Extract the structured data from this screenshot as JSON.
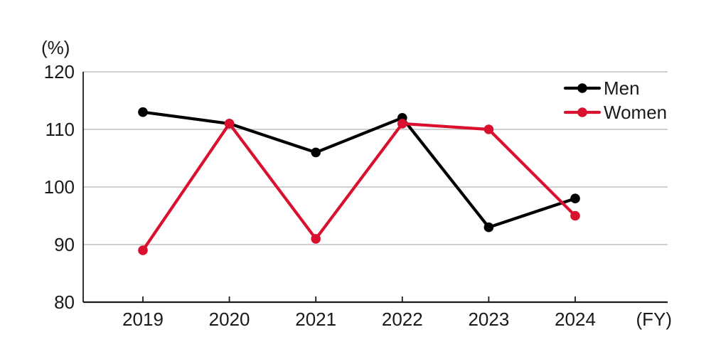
{
  "page": {
    "background": "#ffffff"
  },
  "chart_data": {
    "type": "line",
    "title": "",
    "categories": [
      "2019",
      "2020",
      "2021",
      "2022",
      "2023",
      "2024"
    ],
    "series": [
      {
        "name": "Men",
        "color": "#000000",
        "values": [
          113,
          111,
          106,
          112,
          93,
          98
        ]
      },
      {
        "name": "Women",
        "color": "#d9112f",
        "values": [
          89,
          111,
          91,
          111,
          110,
          95
        ]
      }
    ],
    "unit_label": "(%)",
    "x_axis_suffix": "(FY)",
    "yticks": [
      80,
      90,
      100,
      110,
      120
    ],
    "ylim": [
      80,
      120
    ],
    "grid": true,
    "legend_position": "top-right",
    "legend": [
      "Men",
      "Women"
    ]
  },
  "style": {
    "grid_color": "#b3b3b3",
    "axis_color": "#1a1a1a",
    "text_color": "#1a1a1a",
    "marker_shape": "circle"
  }
}
